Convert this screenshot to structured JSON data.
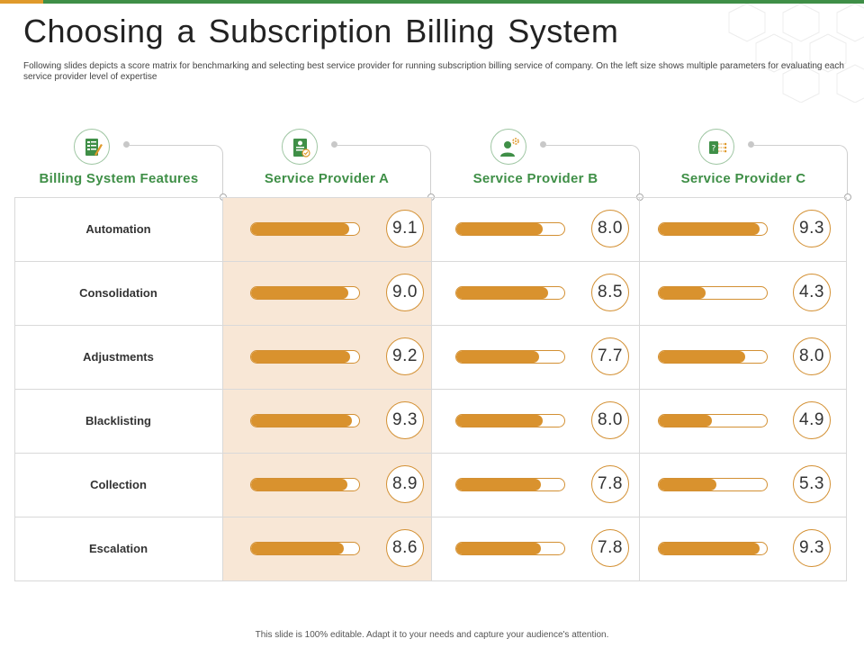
{
  "slide": {
    "title": "Choosing a Subscription Billing System",
    "subtitle": "Following slides depicts a score matrix for benchmarking and selecting best service provider for running subscription billing service of company. On the left size shows multiple parameters for evaluating each service provider level of expertise",
    "footer": "This slide is 100% editable. Adapt it to your needs and capture your audience's attention."
  },
  "colors": {
    "green": "#3f8f47",
    "orange": "#d9922e",
    "shade": "#f8e7d6",
    "accent_top": "#e09a2c"
  },
  "columns": [
    {
      "label": "Billing  System Features",
      "icon": "checklist-icon"
    },
    {
      "label": "Service Provider A",
      "icon": "certificate-icon"
    },
    {
      "label": "Service Provider B",
      "icon": "user-gear-icon"
    },
    {
      "label": "Service Provider C",
      "icon": "question-flow-icon"
    }
  ],
  "rows": [
    {
      "feature": "Automation",
      "scores": [
        "9.1",
        "8.0",
        "9.3"
      ]
    },
    {
      "feature": "Consolidation",
      "scores": [
        "9.0",
        "8.5",
        "4.3"
      ]
    },
    {
      "feature": "Adjustments",
      "scores": [
        "9.2",
        "7.7",
        "8.0"
      ]
    },
    {
      "feature": "Blacklisting",
      "scores": [
        "9.3",
        "8.0",
        "4.9"
      ]
    },
    {
      "feature": "Collection",
      "scores": [
        "8.9",
        "7.8",
        "5.3"
      ]
    },
    {
      "feature": "Escalation",
      "scores": [
        "8.6",
        "7.8",
        "9.3"
      ]
    }
  ],
  "score_max": 10
}
